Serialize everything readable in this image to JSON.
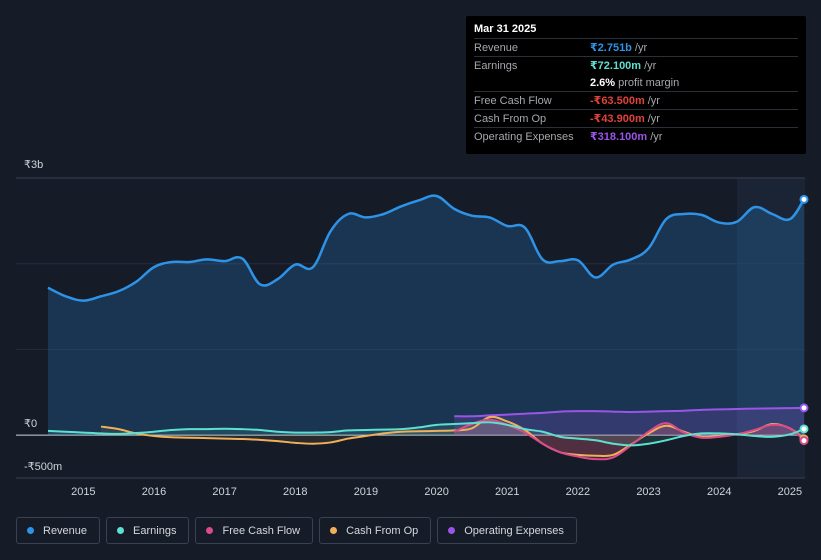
{
  "chart_data": {
    "type": "area",
    "title": "",
    "y_axis": {
      "top_label": "₹3b",
      "zero_label": "₹0",
      "bottom_label": "-₹500m",
      "ylim": [
        -500,
        3000
      ],
      "unit": "₹m"
    },
    "x_ticks": [
      "2015",
      "2016",
      "2017",
      "2018",
      "2019",
      "2020",
      "2021",
      "2022",
      "2023",
      "2024",
      "2025"
    ],
    "forecast_shaded_from": 2024.25,
    "series": [
      {
        "name": "Revenue",
        "color": "#2e93e6",
        "x": [
          2014.5,
          2014.75,
          2015.0,
          2015.25,
          2015.5,
          2015.75,
          2016.0,
          2016.25,
          2016.5,
          2016.75,
          2017.0,
          2017.25,
          2017.5,
          2017.75,
          2018.0,
          2018.25,
          2018.5,
          2018.75,
          2019.0,
          2019.25,
          2019.5,
          2019.75,
          2020.0,
          2020.25,
          2020.5,
          2020.75,
          2021.0,
          2021.25,
          2021.5,
          2021.75,
          2022.0,
          2022.25,
          2022.5,
          2022.75,
          2023.0,
          2023.25,
          2023.5,
          2023.75,
          2024.0,
          2024.25,
          2024.5,
          2024.75,
          2025.0,
          2025.2
        ],
        "values": [
          1720,
          1620,
          1570,
          1620,
          1680,
          1790,
          1960,
          2020,
          2020,
          2050,
          2030,
          2060,
          1760,
          1820,
          1990,
          1960,
          2380,
          2580,
          2540,
          2580,
          2670,
          2740,
          2790,
          2640,
          2560,
          2540,
          2440,
          2420,
          2050,
          2030,
          2040,
          1840,
          1990,
          2050,
          2180,
          2520,
          2580,
          2570,
          2480,
          2490,
          2660,
          2580,
          2520,
          2751
        ]
      },
      {
        "name": "Earnings",
        "color": "#5ee0cf",
        "x": [
          2014.5,
          2014.75,
          2015.0,
          2015.25,
          2015.5,
          2015.75,
          2016.0,
          2016.25,
          2016.5,
          2016.75,
          2017.0,
          2017.25,
          2017.5,
          2017.75,
          2018.0,
          2018.25,
          2018.5,
          2018.75,
          2019.0,
          2019.25,
          2019.5,
          2019.75,
          2020.0,
          2020.25,
          2020.5,
          2020.75,
          2021.0,
          2021.25,
          2021.5,
          2021.75,
          2022.0,
          2022.25,
          2022.5,
          2022.75,
          2023.0,
          2023.25,
          2023.5,
          2023.75,
          2024.0,
          2024.25,
          2024.5,
          2024.75,
          2025.0,
          2025.2
        ],
        "values": [
          50,
          40,
          30,
          20,
          15,
          25,
          40,
          60,
          70,
          70,
          75,
          70,
          60,
          40,
          30,
          30,
          35,
          55,
          60,
          65,
          70,
          90,
          120,
          130,
          140,
          150,
          120,
          70,
          40,
          -20,
          -40,
          -60,
          -100,
          -120,
          -100,
          -60,
          -10,
          20,
          20,
          10,
          -10,
          -20,
          10,
          72
        ]
      },
      {
        "name": "Free Cash Flow",
        "color": "#d94b8a",
        "x": [
          2020.25,
          2020.5,
          2020.75,
          2021.0,
          2021.25,
          2021.5,
          2021.75,
          2022.0,
          2022.25,
          2022.5,
          2022.75,
          2023.0,
          2023.25,
          2023.5,
          2023.75,
          2024.0,
          2024.25,
          2024.5,
          2024.75,
          2025.0,
          2025.2
        ],
        "values": [
          40,
          130,
          180,
          120,
          30,
          -100,
          -200,
          -250,
          -280,
          -260,
          -120,
          40,
          140,
          30,
          -30,
          -20,
          10,
          60,
          120,
          80,
          -63.5
        ]
      },
      {
        "name": "Cash From Op",
        "color": "#f0b05a",
        "x": [
          2015.25,
          2015.5,
          2015.75,
          2016.0,
          2016.25,
          2016.5,
          2016.75,
          2017.0,
          2017.25,
          2017.5,
          2017.75,
          2018.0,
          2018.25,
          2018.5,
          2018.75,
          2019.0,
          2019.25,
          2019.5,
          2019.75,
          2020.0,
          2020.25,
          2020.5,
          2020.75,
          2021.0,
          2021.25,
          2021.5,
          2021.75,
          2022.0,
          2022.25,
          2022.5,
          2022.75,
          2023.0,
          2023.25,
          2023.5,
          2023.75,
          2024.0,
          2024.25,
          2024.5,
          2024.75,
          2025.0,
          2025.2
        ],
        "values": [
          100,
          70,
          20,
          -10,
          -25,
          -30,
          -35,
          -40,
          -45,
          -55,
          -70,
          -90,
          -100,
          -85,
          -40,
          -10,
          20,
          40,
          45,
          50,
          55,
          80,
          210,
          160,
          60,
          -100,
          -200,
          -230,
          -240,
          -230,
          -110,
          20,
          110,
          40,
          -20,
          -10,
          10,
          50,
          130,
          80,
          -43.9
        ]
      },
      {
        "name": "Operating Expenses",
        "color": "#9a55e8",
        "x": [
          2020.25,
          2020.5,
          2020.75,
          2021.0,
          2021.25,
          2021.5,
          2021.75,
          2022.0,
          2022.25,
          2022.5,
          2022.75,
          2023.0,
          2023.25,
          2023.5,
          2023.75,
          2024.0,
          2024.25,
          2024.5,
          2024.75,
          2025.0,
          2025.2
        ],
        "values": [
          220,
          220,
          230,
          240,
          250,
          260,
          275,
          280,
          280,
          275,
          270,
          275,
          280,
          285,
          295,
          300,
          305,
          310,
          312,
          315,
          318.1
        ]
      }
    ]
  },
  "tooltip": {
    "date": "Mar 31 2025",
    "rows": [
      {
        "label": "Revenue",
        "value": "₹2.751b",
        "unit": "/yr",
        "color": "#2e93e6"
      },
      {
        "label": "Earnings",
        "value": "₹72.100m",
        "unit": "/yr",
        "color": "#5ee0cf"
      },
      {
        "label": "",
        "value": "2.6%",
        "unit": "profit margin",
        "color": "#ffffff"
      },
      {
        "label": "Free Cash Flow",
        "value": "-₹63.500m",
        "unit": "/yr",
        "color": "#e0423b"
      },
      {
        "label": "Cash From Op",
        "value": "-₹43.900m",
        "unit": "/yr",
        "color": "#e0423b"
      },
      {
        "label": "Operating Expenses",
        "value": "₹318.100m",
        "unit": "/yr",
        "color": "#9a55e8"
      }
    ]
  },
  "legend": [
    {
      "label": "Revenue",
      "color": "#2e93e6"
    },
    {
      "label": "Earnings",
      "color": "#5ee0cf"
    },
    {
      "label": "Free Cash Flow",
      "color": "#d94b8a"
    },
    {
      "label": "Cash From Op",
      "color": "#f0b05a"
    },
    {
      "label": "Operating Expenses",
      "color": "#9a55e8"
    }
  ]
}
